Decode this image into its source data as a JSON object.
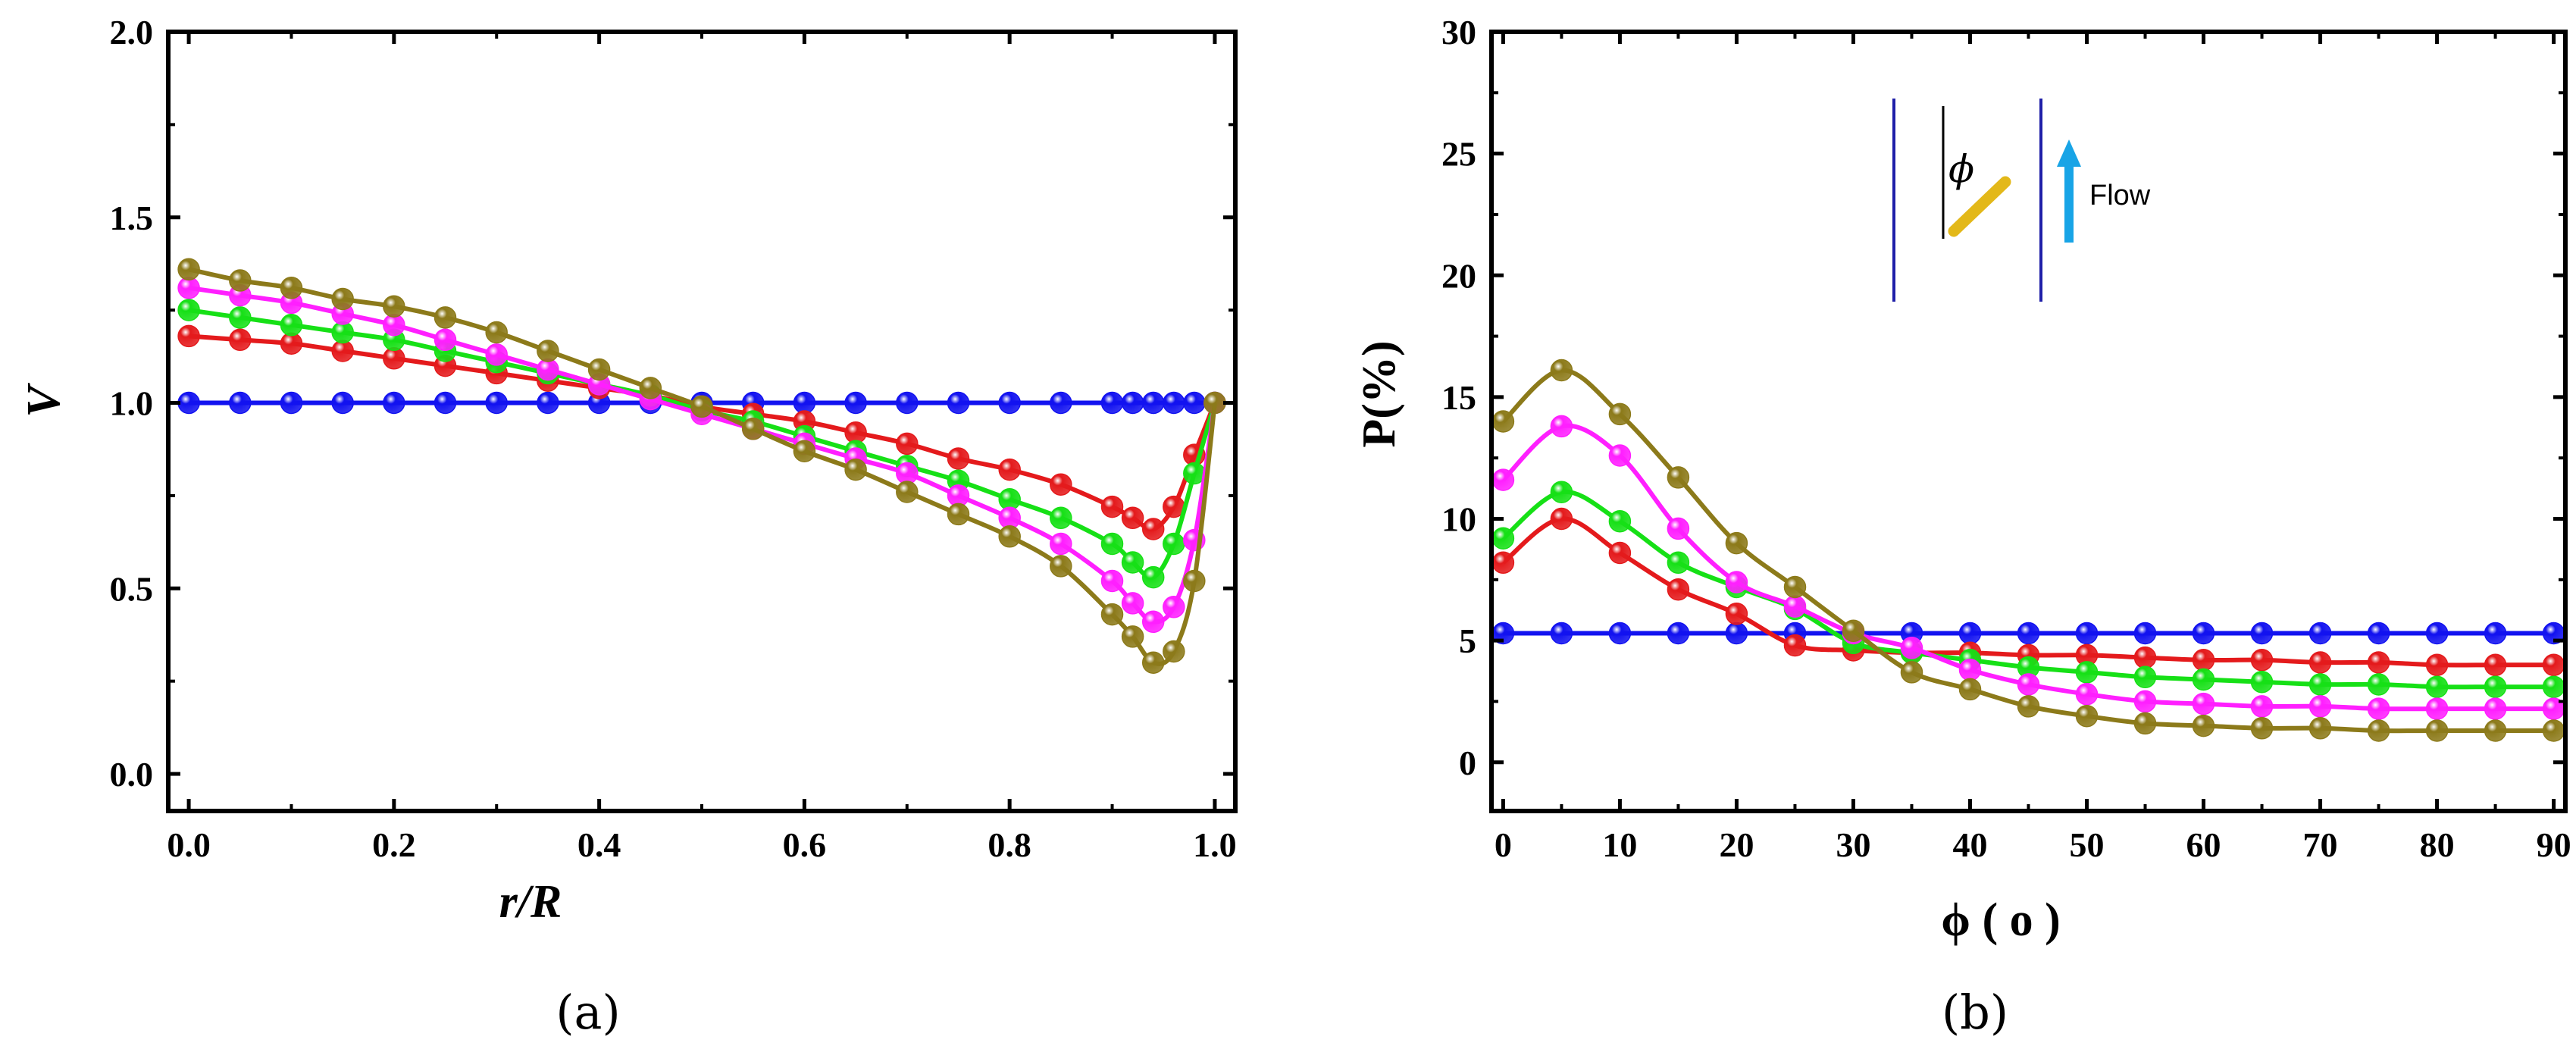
{
  "colors": {
    "red": "#e41a1c",
    "green": "#16e016",
    "magenta": "#ff1fff",
    "olive": "#8c7a1a",
    "blue": "#1212f0",
    "arrow": "#18a4e6",
    "rod": "#e3b819"
  },
  "chart_data": [
    {
      "type": "line",
      "panel_label": "(a)",
      "xlabel": "r/R",
      "ylabel": "V",
      "xlim": [
        -0.02,
        1.02
      ],
      "ylim": [
        -0.1,
        2.0
      ],
      "xticks": [
        0.0,
        0.2,
        0.4,
        0.6,
        0.8,
        1.0
      ],
      "xtick_labels": [
        "0.0",
        "0.2",
        "0.4",
        "0.6",
        "0.8",
        "1.0"
      ],
      "yticks": [
        0.0,
        0.5,
        1.0,
        1.5,
        2.0
      ],
      "ytick_labels": [
        "0.0",
        "0.5",
        "1.0",
        "1.5",
        "2.0"
      ],
      "series": [
        {
          "name": "blue",
          "color": "blue",
          "x": [
            0,
            0.05,
            0.1,
            0.15,
            0.2,
            0.25,
            0.3,
            0.35,
            0.4,
            0.45,
            0.5,
            0.55,
            0.6,
            0.65,
            0.7,
            0.75,
            0.8,
            0.85,
            0.9,
            0.92,
            0.94,
            0.96,
            0.98,
            1.0
          ],
          "y": [
            1,
            1,
            1,
            1,
            1,
            1,
            1,
            1,
            1,
            1,
            1,
            1,
            1,
            1,
            1,
            1,
            1,
            1,
            1,
            1,
            1,
            1,
            1,
            1
          ]
        },
        {
          "name": "red",
          "color": "red",
          "x": [
            0,
            0.05,
            0.1,
            0.15,
            0.2,
            0.25,
            0.3,
            0.35,
            0.4,
            0.45,
            0.5,
            0.55,
            0.6,
            0.65,
            0.7,
            0.75,
            0.8,
            0.85,
            0.9,
            0.92,
            0.94,
            0.96,
            0.98,
            1.0
          ],
          "y": [
            1.18,
            1.17,
            1.16,
            1.14,
            1.12,
            1.1,
            1.08,
            1.06,
            1.04,
            1.02,
            0.99,
            0.97,
            0.95,
            0.92,
            0.89,
            0.85,
            0.82,
            0.78,
            0.72,
            0.69,
            0.66,
            0.72,
            0.86,
            1.0
          ]
        },
        {
          "name": "green",
          "color": "green",
          "x": [
            0,
            0.05,
            0.1,
            0.15,
            0.2,
            0.25,
            0.3,
            0.35,
            0.4,
            0.45,
            0.5,
            0.55,
            0.6,
            0.65,
            0.7,
            0.75,
            0.8,
            0.85,
            0.9,
            0.92,
            0.94,
            0.96,
            0.98,
            1.0
          ],
          "y": [
            1.25,
            1.23,
            1.21,
            1.19,
            1.17,
            1.14,
            1.11,
            1.08,
            1.05,
            1.02,
            0.98,
            0.95,
            0.91,
            0.87,
            0.83,
            0.79,
            0.74,
            0.69,
            0.62,
            0.57,
            0.53,
            0.62,
            0.81,
            1.0
          ]
        },
        {
          "name": "magenta",
          "color": "magenta",
          "x": [
            0,
            0.05,
            0.1,
            0.15,
            0.2,
            0.25,
            0.3,
            0.35,
            0.4,
            0.45,
            0.5,
            0.55,
            0.6,
            0.65,
            0.7,
            0.75,
            0.8,
            0.85,
            0.9,
            0.92,
            0.94,
            0.96,
            0.98,
            1.0
          ],
          "y": [
            1.31,
            1.29,
            1.27,
            1.24,
            1.21,
            1.17,
            1.13,
            1.09,
            1.05,
            1.01,
            0.97,
            0.93,
            0.89,
            0.85,
            0.81,
            0.75,
            0.69,
            0.62,
            0.52,
            0.46,
            0.41,
            0.45,
            0.63,
            1.0
          ]
        },
        {
          "name": "olive",
          "color": "olive",
          "x": [
            0,
            0.05,
            0.1,
            0.15,
            0.2,
            0.25,
            0.3,
            0.35,
            0.4,
            0.45,
            0.5,
            0.55,
            0.6,
            0.65,
            0.7,
            0.75,
            0.8,
            0.85,
            0.9,
            0.92,
            0.94,
            0.96,
            0.98,
            1.0
          ],
          "y": [
            1.36,
            1.33,
            1.31,
            1.28,
            1.26,
            1.23,
            1.19,
            1.14,
            1.09,
            1.04,
            0.99,
            0.93,
            0.87,
            0.82,
            0.76,
            0.7,
            0.64,
            0.56,
            0.43,
            0.37,
            0.3,
            0.33,
            0.52,
            1.0
          ]
        }
      ]
    },
    {
      "type": "line",
      "panel_label": "(b)",
      "xlabel": "ϕ ( o )",
      "ylabel": "P(%)",
      "xlim": [
        -1,
        91
      ],
      "ylim": [
        -2,
        30
      ],
      "xticks": [
        0,
        10,
        20,
        30,
        40,
        50,
        60,
        70,
        80,
        90
      ],
      "xtick_labels": [
        "0",
        "10",
        "20",
        "30",
        "40",
        "50",
        "60",
        "70",
        "80",
        "90"
      ],
      "yticks": [
        0,
        5,
        10,
        15,
        20,
        25,
        30
      ],
      "ytick_labels": [
        "0",
        "5",
        "10",
        "15",
        "20",
        "25",
        "30"
      ],
      "inset": {
        "phi_symbol": "ϕ",
        "flow_label": "Flow"
      },
      "series": [
        {
          "name": "blue",
          "color": "blue",
          "x": [
            0,
            5,
            10,
            15,
            20,
            25,
            30,
            35,
            40,
            45,
            50,
            55,
            60,
            65,
            70,
            75,
            80,
            85,
            90
          ],
          "y": [
            5.3,
            5.3,
            5.3,
            5.3,
            5.3,
            5.3,
            5.3,
            5.3,
            5.3,
            5.3,
            5.3,
            5.3,
            5.3,
            5.3,
            5.3,
            5.3,
            5.3,
            5.3,
            5.3
          ]
        },
        {
          "name": "red",
          "color": "red",
          "x": [
            0,
            5,
            10,
            15,
            20,
            25,
            30,
            35,
            40,
            45,
            50,
            55,
            60,
            65,
            70,
            75,
            80,
            85,
            90
          ],
          "y": [
            8.2,
            10.0,
            8.6,
            7.1,
            6.1,
            4.8,
            4.6,
            4.5,
            4.5,
            4.4,
            4.4,
            4.3,
            4.2,
            4.2,
            4.1,
            4.1,
            4.0,
            4.0,
            4.0
          ]
        },
        {
          "name": "green",
          "color": "green",
          "x": [
            0,
            5,
            10,
            15,
            20,
            25,
            30,
            35,
            40,
            45,
            50,
            55,
            60,
            65,
            70,
            75,
            80,
            85,
            90
          ],
          "y": [
            9.2,
            11.1,
            9.9,
            8.2,
            7.2,
            6.3,
            4.9,
            4.5,
            4.2,
            3.9,
            3.7,
            3.5,
            3.4,
            3.3,
            3.2,
            3.2,
            3.1,
            3.1,
            3.1
          ]
        },
        {
          "name": "magenta",
          "color": "magenta",
          "x": [
            0,
            5,
            10,
            15,
            20,
            25,
            30,
            35,
            40,
            45,
            50,
            55,
            60,
            65,
            70,
            75,
            80,
            85,
            90
          ],
          "y": [
            11.6,
            13.8,
            12.6,
            9.6,
            7.4,
            6.4,
            5.3,
            4.7,
            3.8,
            3.2,
            2.8,
            2.5,
            2.4,
            2.3,
            2.3,
            2.2,
            2.2,
            2.2,
            2.2
          ]
        },
        {
          "name": "olive",
          "color": "olive",
          "x": [
            0,
            5,
            10,
            15,
            20,
            25,
            30,
            35,
            40,
            45,
            50,
            55,
            60,
            65,
            70,
            75,
            80,
            85,
            90
          ],
          "y": [
            14.0,
            16.1,
            14.3,
            11.7,
            9.0,
            7.2,
            5.4,
            3.7,
            3.0,
            2.3,
            1.9,
            1.6,
            1.5,
            1.4,
            1.4,
            1.3,
            1.3,
            1.3,
            1.3
          ]
        }
      ]
    }
  ]
}
